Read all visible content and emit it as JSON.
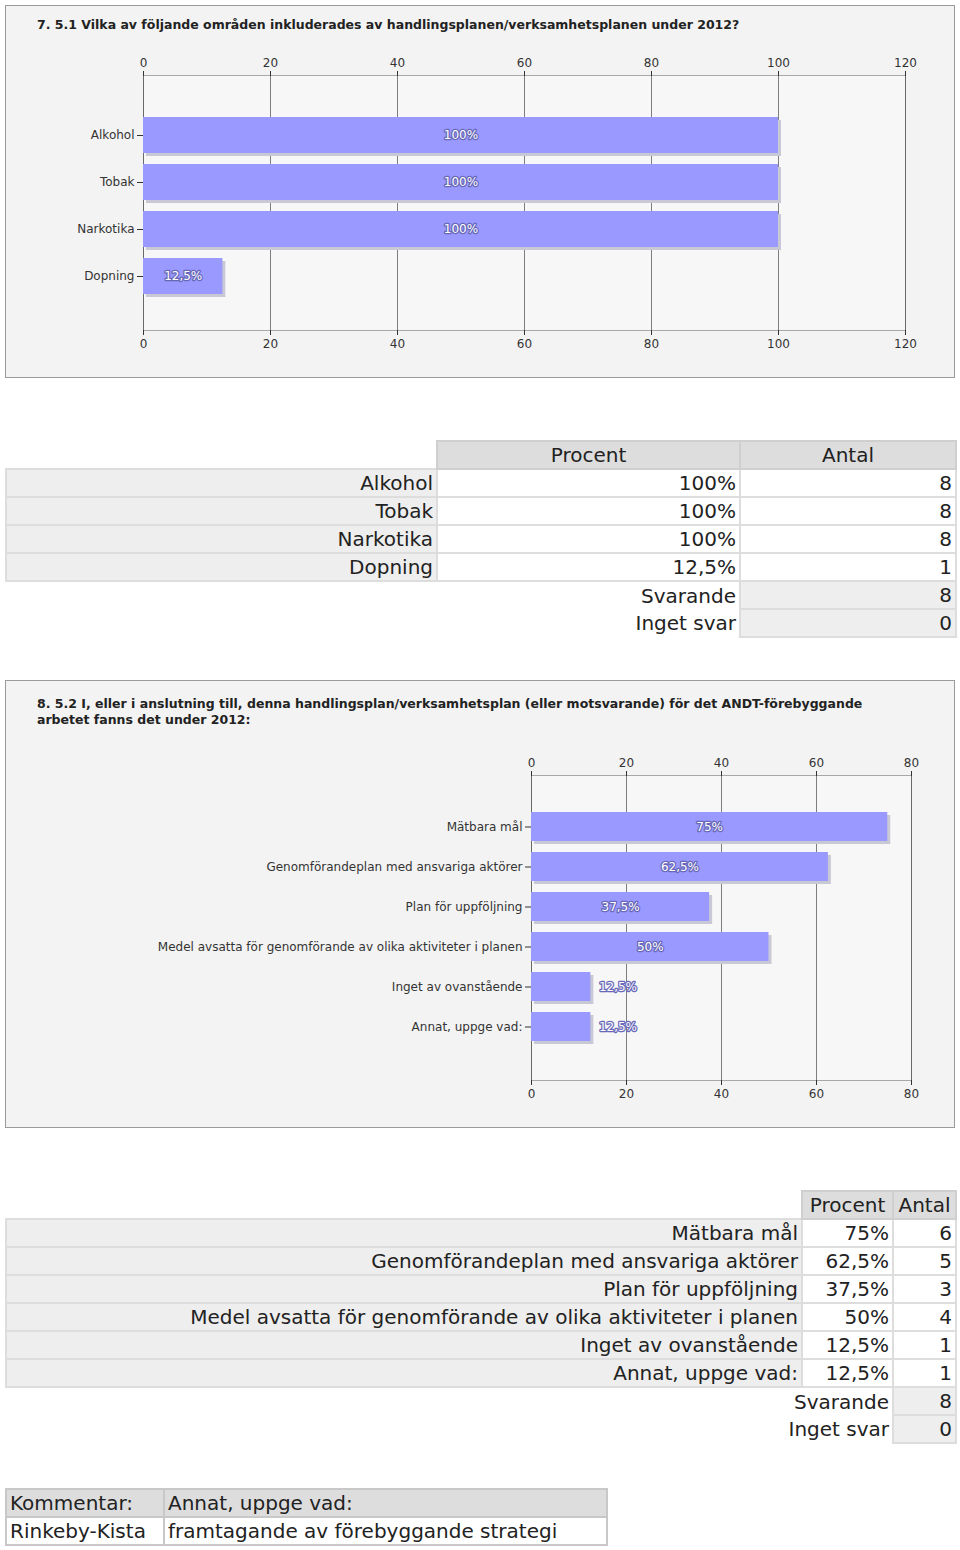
{
  "chart_data": [
    {
      "type": "bar",
      "orientation": "horizontal",
      "title": "7. 5.1 Vilka av följande områden inkluderades av handlingsplanen/verksamhetsplanen under 2012?",
      "categories": [
        "Alkohol",
        "Tobak",
        "Narkotika",
        "Dopning"
      ],
      "values": [
        100,
        100,
        100,
        12.5
      ],
      "value_labels": [
        "100%",
        "100%",
        "100%",
        "12,5%"
      ],
      "color": "#9999ff",
      "xlim": [
        0,
        120
      ],
      "xticks": [
        0,
        20,
        40,
        60,
        80,
        100,
        120
      ],
      "grid": true,
      "data_labels": true
    },
    {
      "type": "bar",
      "orientation": "horizontal",
      "title": "8. 5.2 I, eller i anslutning till, denna handlingsplan/verksamhetsplan (eller motsvarande) för det ANDT-förebyggande arbetet fanns det under 2012:",
      "categories": [
        "Mätbara mål",
        "Genomförandeplan med ansvariga aktörer",
        "Plan för uppföljning",
        "Medel avsatta för genomförande av olika aktiviteter i planen",
        "Inget av ovanstående",
        "Annat, uppge vad:"
      ],
      "values": [
        75,
        62.5,
        37.5,
        50,
        12.5,
        12.5
      ],
      "value_labels": [
        "75%",
        "62,5%",
        "37,5%",
        "50%",
        "12,5%",
        "12,5%"
      ],
      "color": "#9999ff",
      "xlim": [
        0,
        80
      ],
      "xticks": [
        0,
        20,
        40,
        60,
        80
      ],
      "grid": true,
      "data_labels": true
    }
  ],
  "tables": [
    {
      "header": [
        "Procent",
        "Antal"
      ],
      "rows": [
        [
          "Alkohol",
          "100%",
          "8"
        ],
        [
          "Tobak",
          "100%",
          "8"
        ],
        [
          "Narkotika",
          "100%",
          "8"
        ],
        [
          "Dopning",
          "12,5%",
          "1"
        ]
      ],
      "summary": [
        [
          "Svarande",
          "8"
        ],
        [
          "Inget svar",
          "0"
        ]
      ]
    },
    {
      "header": [
        "Procent",
        "Antal"
      ],
      "rows": [
        [
          "Mätbara mål",
          "75%",
          "6"
        ],
        [
          "Genomförandeplan med ansvariga aktörer",
          "62,5%",
          "5"
        ],
        [
          "Plan för uppföljning",
          "37,5%",
          "3"
        ],
        [
          "Medel avsatta för genomförande av olika aktiviteter i planen",
          "50%",
          "4"
        ],
        [
          "Inget av ovanstående",
          "12,5%",
          "1"
        ],
        [
          "Annat, uppge vad:",
          "12,5%",
          "1"
        ]
      ],
      "summary": [
        [
          "Svarande",
          "8"
        ],
        [
          "Inget svar",
          "0"
        ]
      ]
    }
  ],
  "comment_table": {
    "rows": [
      [
        "Kommentar:",
        "Annat, uppge vad:"
      ],
      [
        "Rinkeby-Kista",
        "framtagande av förebyggande strategi"
      ]
    ]
  }
}
